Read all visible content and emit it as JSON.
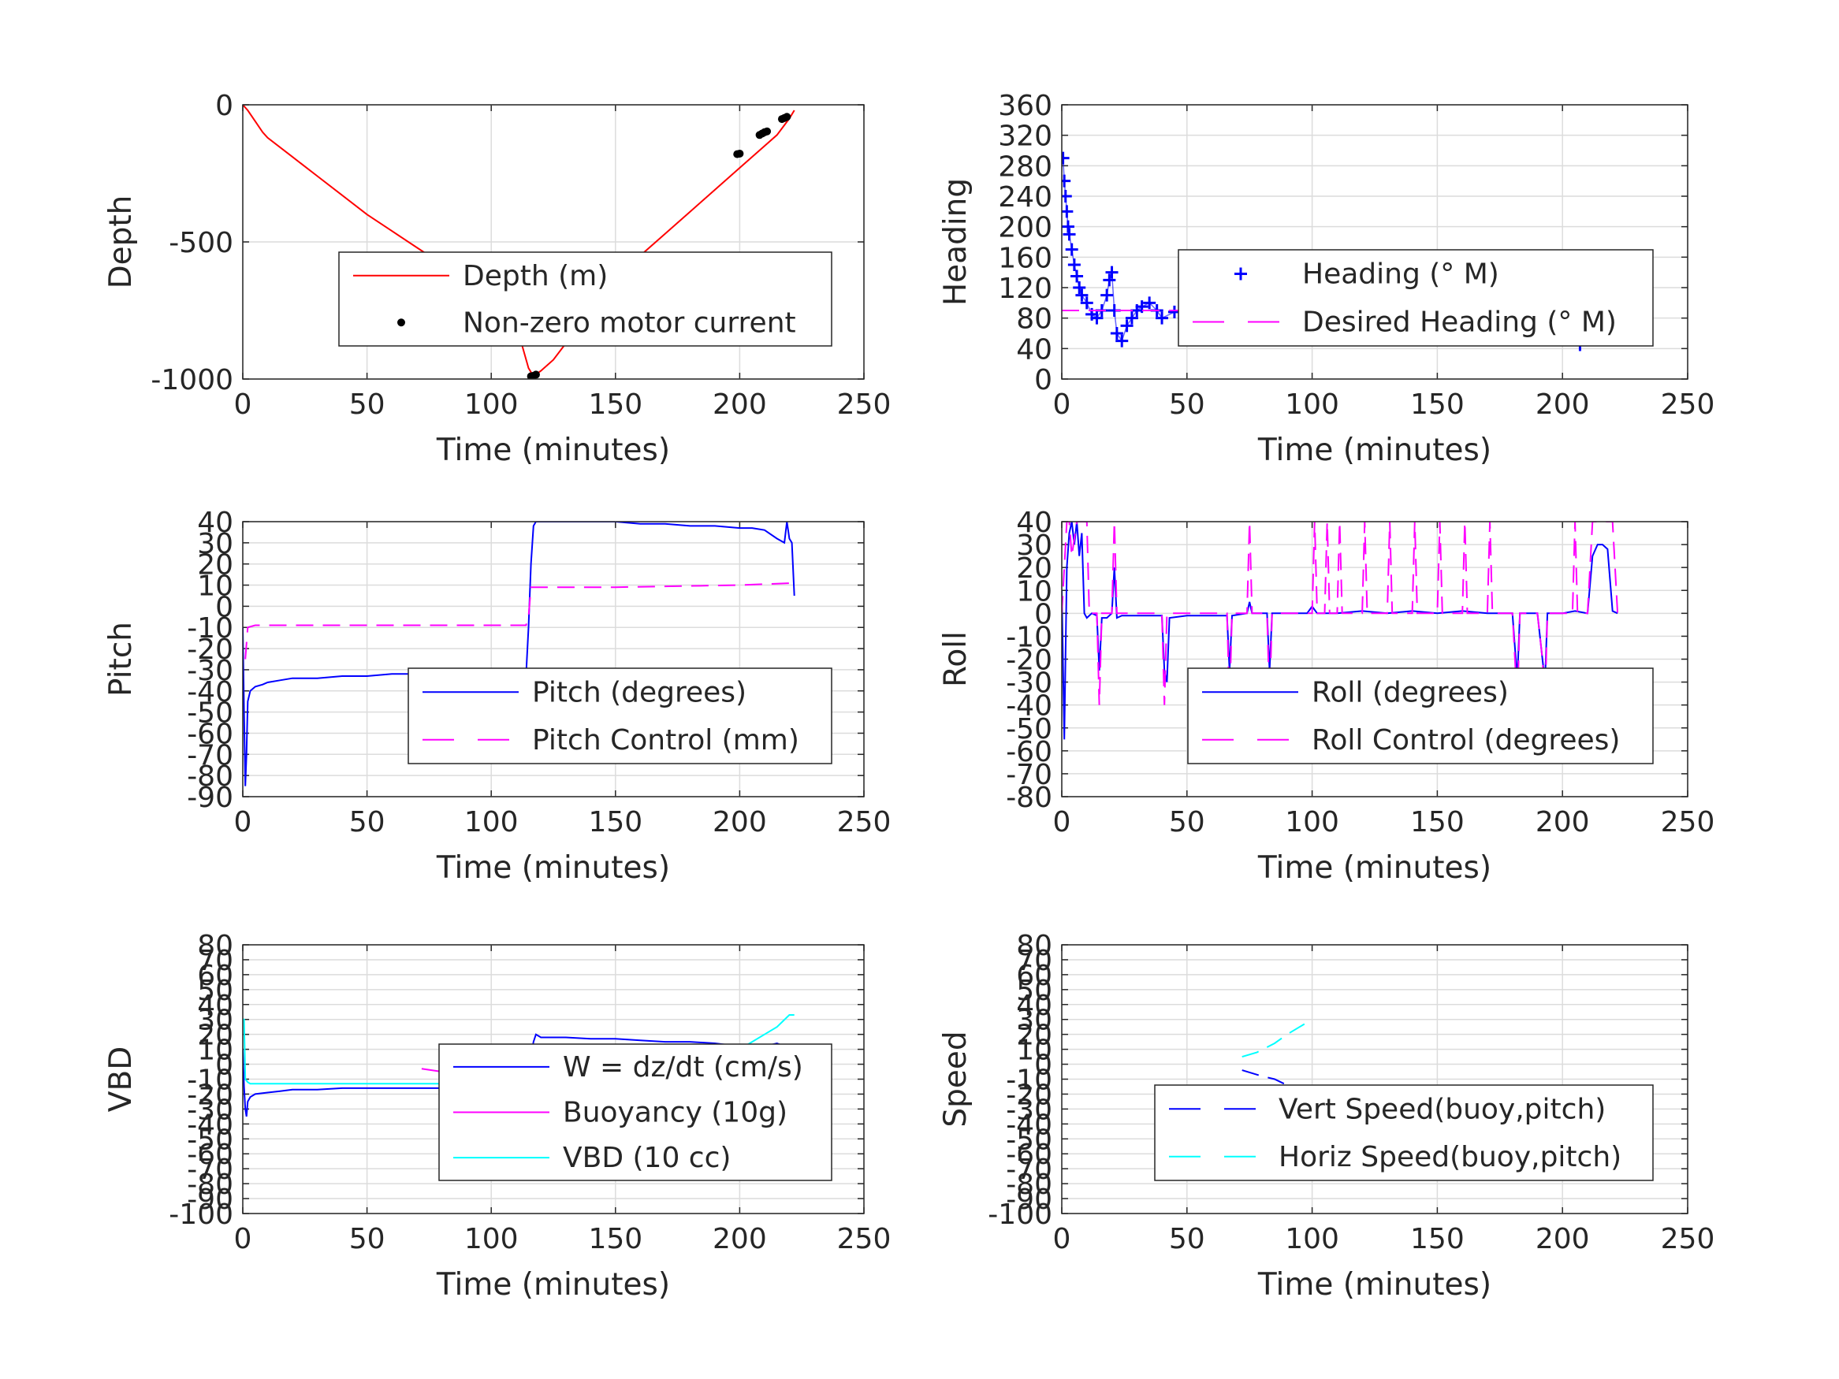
{
  "colors": {
    "red": "#ff0000",
    "blue": "#0000ff",
    "magenta": "#ff00ff",
    "cyan": "#00ffff",
    "black": "#000000"
  },
  "chart_data": [
    {
      "type": "line",
      "xlabel": "Time (minutes)",
      "ylabel": "Depth",
      "xlim": [
        0,
        250
      ],
      "ylim": [
        -1000,
        0
      ],
      "xticks": [
        "0",
        "50",
        "100",
        "150",
        "200",
        "250"
      ],
      "yticks": [
        "0",
        "-500",
        "-1000"
      ],
      "grid": true,
      "legend_placement": "center-right",
      "series": [
        {
          "name": "Depth (m)",
          "style": "solid",
          "color": "#ff0000",
          "x": [
            0,
            2,
            5,
            8,
            10,
            20,
            30,
            40,
            50,
            60,
            70,
            80,
            90,
            100,
            110,
            115,
            117,
            120,
            125,
            130,
            140,
            150,
            160,
            170,
            180,
            190,
            200,
            210,
            215,
            220,
            222
          ],
          "y": [
            0,
            -20,
            -60,
            -100,
            -120,
            -190,
            -260,
            -330,
            -400,
            -460,
            -520,
            -580,
            -650,
            -720,
            -800,
            -960,
            -990,
            -970,
            -930,
            -870,
            -770,
            -650,
            -550,
            -470,
            -390,
            -310,
            -230,
            -150,
            -110,
            -50,
            -20
          ]
        },
        {
          "name": "Non-zero motor current",
          "style": "dots",
          "color": "#000000",
          "x": [
            116,
            117,
            118,
            199,
            200,
            208,
            209,
            210,
            211,
            217,
            218,
            219
          ],
          "y": [
            -990,
            -988,
            -984,
            -180,
            -178,
            -110,
            -105,
            -100,
            -97,
            -52,
            -48,
            -44
          ]
        }
      ]
    },
    {
      "type": "scatter",
      "xlabel": "Time (minutes)",
      "ylabel": "Heading",
      "xlim": [
        0,
        250
      ],
      "ylim": [
        0,
        360
      ],
      "xticks": [
        "0",
        "50",
        "100",
        "150",
        "200",
        "250"
      ],
      "yticks": [
        "0",
        "40",
        "80",
        "120",
        "160",
        "200",
        "240",
        "280",
        "320",
        "360"
      ],
      "grid": true,
      "legend_placement": "center-right",
      "series": [
        {
          "name": "Heading (° M)",
          "style": "plus",
          "color": "#0000ff",
          "x": [
            0.5,
            1,
            1.5,
            2,
            2.5,
            3,
            4,
            5,
            6,
            7,
            8,
            10,
            12,
            14,
            16,
            18,
            19,
            20,
            21,
            22,
            24,
            26,
            28,
            30,
            32,
            35,
            38,
            40,
            45,
            50,
            55,
            60,
            65,
            70,
            75,
            80,
            85,
            90,
            95,
            100,
            105,
            110,
            115,
            120,
            125,
            130,
            135,
            140,
            145,
            150,
            155,
            160,
            165,
            170,
            175,
            180,
            183,
            186,
            189,
            192,
            195,
            198,
            201,
            204,
            207,
            210,
            212,
            214,
            216,
            218,
            220,
            222
          ],
          "y": [
            290,
            260,
            240,
            220,
            200,
            190,
            170,
            150,
            135,
            120,
            110,
            100,
            85,
            80,
            90,
            110,
            130,
            140,
            90,
            60,
            50,
            70,
            80,
            90,
            95,
            100,
            90,
            80,
            88,
            85,
            92,
            88,
            95,
            85,
            90,
            95,
            100,
            92,
            88,
            98,
            100,
            92,
            85,
            95,
            90,
            88,
            85,
            82,
            92,
            98,
            95,
            90,
            92,
            88,
            82,
            75,
            60,
            75,
            90,
            120,
            130,
            110,
            80,
            55,
            45,
            60,
            85,
            100,
            130,
            120,
            90,
            80
          ]
        },
        {
          "name": "Desired Heading (° M)",
          "style": "dash",
          "color": "#ff00ff",
          "x": [
            0,
            222
          ],
          "y": [
            90,
            90
          ]
        }
      ]
    },
    {
      "type": "line",
      "xlabel": "Time (minutes)",
      "ylabel": "Pitch",
      "xlim": [
        0,
        250
      ],
      "ylim": [
        -90,
        40
      ],
      "xticks": [
        "0",
        "50",
        "100",
        "150",
        "200",
        "250"
      ],
      "yticks": [
        "-90",
        "-80",
        "-70",
        "-60",
        "-50",
        "-40",
        "-30",
        "-20",
        "-10",
        "0",
        "10",
        "20",
        "30",
        "40"
      ],
      "grid": true,
      "legend_placement": "center-right",
      "series": [
        {
          "name": "Pitch (degrees)",
          "style": "solid",
          "color": "#0000ff",
          "x": [
            0,
            0.5,
            1,
            1.5,
            2,
            3,
            5,
            8,
            10,
            15,
            20,
            30,
            40,
            50,
            60,
            70,
            80,
            90,
            100,
            110,
            114,
            115,
            116,
            117,
            118,
            120,
            130,
            140,
            150,
            160,
            170,
            180,
            190,
            200,
            205,
            210,
            215,
            218,
            219,
            220,
            221,
            222
          ],
          "y": [
            -10,
            -50,
            -85,
            -70,
            -45,
            -40,
            -38,
            -37,
            -36,
            -35,
            -34,
            -34,
            -33,
            -33,
            -32,
            -32,
            -32,
            -32,
            -32,
            -32,
            -33,
            -10,
            20,
            38,
            40,
            40,
            40,
            40,
            40,
            39,
            39,
            38,
            38,
            37,
            37,
            36,
            32,
            30,
            40,
            32,
            30,
            5
          ]
        },
        {
          "name": "Pitch Control (mm)",
          "style": "dash",
          "color": "#ff00ff",
          "x": [
            1,
            2,
            5,
            10,
            50,
            100,
            114,
            115,
            116,
            117,
            120,
            150,
            200,
            222
          ],
          "y": [
            -25,
            -10,
            -9,
            -9,
            -9,
            -9,
            -9,
            -5,
            9,
            9,
            9,
            9,
            10,
            11
          ]
        }
      ]
    },
    {
      "type": "line",
      "xlabel": "Time (minutes)",
      "ylabel": "Roll",
      "xlim": [
        0,
        250
      ],
      "ylim": [
        -80,
        40
      ],
      "xticks": [
        "0",
        "50",
        "100",
        "150",
        "200",
        "250"
      ],
      "yticks": [
        "-80",
        "-70",
        "-60",
        "-50",
        "-40",
        "-30",
        "-20",
        "-10",
        "0",
        "10",
        "20",
        "30",
        "40"
      ],
      "grid": true,
      "legend_placement": "center-right",
      "series": [
        {
          "name": "Roll (degrees)",
          "style": "solid",
          "color": "#0000ff",
          "x": [
            0,
            1,
            2,
            3,
            4,
            5,
            6,
            7,
            8,
            9,
            10,
            12,
            14,
            15,
            16,
            18,
            20,
            21,
            22,
            24,
            30,
            40,
            41,
            42,
            43,
            50,
            60,
            66,
            67,
            68,
            74,
            75,
            76,
            82,
            83,
            84,
            90,
            98,
            100,
            102,
            110,
            120,
            130,
            140,
            150,
            160,
            170,
            180,
            181,
            182,
            183,
            190,
            192,
            193,
            194,
            200,
            205,
            210,
            212,
            214,
            216,
            218,
            220,
            222
          ],
          "y": [
            10,
            -55,
            20,
            35,
            40,
            30,
            40,
            25,
            35,
            0,
            -2,
            0,
            -1,
            -25,
            -2,
            -2,
            0,
            20,
            -2,
            -1,
            -1,
            -1,
            -25,
            -30,
            -2,
            -1,
            -1,
            -1,
            -25,
            -1,
            0,
            5,
            0,
            0,
            -25,
            0,
            0,
            0,
            3,
            0,
            0,
            1,
            0,
            1,
            0,
            1,
            0,
            0,
            -15,
            -28,
            0,
            0,
            -20,
            -30,
            0,
            0,
            1,
            0,
            25,
            30,
            30,
            28,
            1,
            0
          ]
        },
        {
          "name": "Roll Control (degrees)",
          "style": "dash",
          "color": "#ff00ff",
          "x": [
            0,
            2,
            3,
            4,
            6,
            8,
            10,
            11,
            14,
            15,
            16,
            20,
            21,
            22,
            24,
            40,
            41,
            42,
            66,
            67,
            68,
            74,
            75,
            76,
            82,
            83,
            84,
            100,
            101,
            102,
            105,
            106,
            107,
            110,
            111,
            112,
            120,
            121,
            122,
            130,
            131,
            132,
            140,
            141,
            142,
            150,
            151,
            152,
            160,
            161,
            162,
            170,
            171,
            172,
            180,
            181,
            182,
            183,
            190,
            192,
            193,
            194,
            200,
            204,
            205,
            206,
            210,
            212,
            214,
            216,
            218,
            220,
            222
          ],
          "y": [
            0,
            40,
            40,
            25,
            40,
            40,
            40,
            0,
            0,
            -40,
            0,
            0,
            40,
            0,
            0,
            0,
            -40,
            0,
            0,
            -40,
            0,
            0,
            40,
            0,
            0,
            -40,
            0,
            0,
            40,
            0,
            0,
            40,
            0,
            0,
            40,
            0,
            0,
            40,
            0,
            0,
            40,
            0,
            0,
            40,
            0,
            0,
            40,
            0,
            0,
            40,
            0,
            0,
            40,
            0,
            0,
            -20,
            -40,
            0,
            0,
            -20,
            -40,
            0,
            0,
            0,
            40,
            0,
            0,
            40,
            40,
            40,
            40,
            40,
            0
          ]
        }
      ]
    },
    {
      "type": "line",
      "xlabel": "Time (minutes)",
      "ylabel": "VBD",
      "xlim": [
        0,
        250
      ],
      "ylim": [
        -100,
        80
      ],
      "xticks": [
        "0",
        "50",
        "100",
        "150",
        "200",
        "250"
      ],
      "yticks": [
        "-100",
        "-90",
        "-80",
        "-70",
        "-60",
        "-50",
        "-40",
        "-30",
        "-20",
        "-10",
        "0",
        "10",
        "20",
        "30",
        "40",
        "50",
        "60",
        "70",
        "80"
      ],
      "grid": true,
      "legend_placement": "center-right",
      "series": [
        {
          "name": "W = dz/dt (cm/s)",
          "style": "solid",
          "color": "#0000ff",
          "x": [
            0,
            0.5,
            1,
            1.5,
            2,
            3,
            5,
            10,
            15,
            20,
            30,
            40,
            50,
            60,
            70,
            80,
            90,
            100,
            110,
            114,
            116,
            117,
            118,
            120,
            130,
            140,
            150,
            160,
            170,
            180,
            190,
            200,
            205,
            210,
            215,
            218,
            220,
            222
          ],
          "y": [
            10,
            -15,
            -30,
            -35,
            -25,
            -22,
            -20,
            -19,
            -18,
            -17,
            -17,
            -16,
            -16,
            -16,
            -16,
            -16,
            -16,
            -16,
            -16,
            -16,
            5,
            15,
            20,
            18,
            18,
            17,
            17,
            16,
            15,
            15,
            14,
            12,
            10,
            12,
            14,
            12,
            10,
            0
          ]
        },
        {
          "name": "Buoyancy (10g)",
          "style": "solid",
          "color": "#ff00ff",
          "x": [
            72,
            80,
            90,
            95,
            100,
            104
          ],
          "y": [
            -3,
            -5,
            -10,
            -14,
            -18,
            -20
          ]
        },
        {
          "name": "VBD (10 cc)",
          "style": "solid",
          "color": "#00ffff",
          "x": [
            0,
            0.5,
            1,
            2,
            3,
            5,
            50,
            100,
            114,
            115,
            116,
            117,
            118,
            150,
            200,
            205,
            210,
            215,
            220,
            222
          ],
          "y": [
            30,
            30,
            -10,
            -12,
            -13,
            -13,
            -13,
            -13,
            -13,
            0,
            0,
            9,
            10,
            10,
            10,
            15,
            20,
            25,
            33,
            33
          ]
        }
      ]
    },
    {
      "type": "line",
      "xlabel": "Time (minutes)",
      "ylabel": "Speed",
      "xlim": [
        0,
        250
      ],
      "ylim": [
        -100,
        80
      ],
      "xticks": [
        "0",
        "50",
        "100",
        "150",
        "200",
        "250"
      ],
      "yticks": [
        "-100",
        "-90",
        "-80",
        "-70",
        "-60",
        "-50",
        "-40",
        "-30",
        "-20",
        "-10",
        "0",
        "10",
        "20",
        "30",
        "40",
        "50",
        "60",
        "70",
        "80"
      ],
      "grid": true,
      "legend_placement": "center-right",
      "series": [
        {
          "name": "Vert Speed(buoy,pitch)",
          "style": "dash",
          "color": "#0000ff",
          "x": [
            72,
            80,
            85,
            90,
            95,
            100
          ],
          "y": [
            -4,
            -8,
            -10,
            -14,
            -18,
            -22
          ]
        },
        {
          "name": "Horiz Speed(buoy,pitch)",
          "style": "dash",
          "color": "#00ffff",
          "x": [
            72,
            78,
            85,
            90,
            95,
            100
          ],
          "y": [
            5,
            8,
            14,
            20,
            25,
            30
          ]
        }
      ]
    }
  ]
}
